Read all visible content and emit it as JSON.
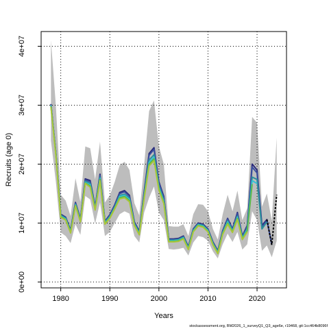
{
  "chart_data": {
    "type": "line",
    "xlabel": "Years",
    "ylabel": "Recruits (age 0)",
    "xlim": [
      1976,
      2026
    ],
    "ylim": [
      -1000000,
      42500000
    ],
    "x_ticks": [
      1980,
      1990,
      2000,
      2010,
      2020
    ],
    "x_tick_labels": [
      "1980",
      "1990",
      "2000",
      "2010",
      "2020"
    ],
    "y_ticks": [
      0,
      10000000,
      20000000,
      30000000,
      40000000
    ],
    "y_tick_labels": [
      "0e+00",
      "1e+07",
      "2e+07",
      "3e+07",
      "4e+07"
    ],
    "grid": true,
    "footer": "stockassessment.org, BM2026_1_surveyQ1_Q3_age6e, r19468, git:1cc464b8096f",
    "x": [
      1978,
      1979,
      1980,
      1981,
      1982,
      1983,
      1984,
      1985,
      1986,
      1987,
      1988,
      1989,
      1990,
      1991,
      1992,
      1993,
      1994,
      1995,
      1996,
      1997,
      1998,
      1999,
      2000,
      2001,
      2002,
      2003,
      2004,
      2005,
      2006,
      2007,
      2008,
      2009,
      2010,
      2011,
      2012,
      2013,
      2014,
      2015,
      2016,
      2017,
      2018,
      2019,
      2020,
      2021,
      2022,
      2023,
      2024
    ],
    "confidence_band": {
      "upper": [
        41000000,
        30000000,
        14800000,
        13800000,
        11200000,
        17600000,
        13600000,
        23000000,
        22700000,
        17400000,
        23800000,
        13500000,
        14700000,
        17000000,
        19800000,
        20400000,
        19000000,
        13400000,
        11300000,
        20000000,
        29000000,
        30800000,
        23000000,
        20000000,
        9500000,
        9400000,
        9400000,
        9800000,
        7800000,
        11500000,
        13200000,
        13100000,
        12000000,
        9000000,
        7200000,
        11500000,
        14800000,
        12000000,
        15500000,
        10500000,
        12500000,
        28000000,
        27000000,
        12800000,
        15000000,
        10400000,
        24500000
      ],
      "lower": [
        24000000,
        17000000,
        8400000,
        7800000,
        6600000,
        9800000,
        8000000,
        14600000,
        14000000,
        9900000,
        13500000,
        7800000,
        8500000,
        10000000,
        11500000,
        12000000,
        11600000,
        7800000,
        6700000,
        11800000,
        14300000,
        16200000,
        11800000,
        10500000,
        5600000,
        5500000,
        5600000,
        5800000,
        4500000,
        6700000,
        7800000,
        7600000,
        7000000,
        5200000,
        4000000,
        6400000,
        8200000,
        6800000,
        8500000,
        5500000,
        6400000,
        12000000,
        10500000,
        5300000,
        6200000,
        4200000,
        7000000
      ]
    },
    "series": [
      {
        "color": "#2a2a7a",
        "values": [
          30200000,
          22000000,
          11500000,
          11000000,
          8800000,
          13500000,
          10700000,
          17500000,
          17200000,
          12800000,
          18300000,
          10300000,
          11400000,
          13100000,
          15200000,
          15500000,
          14700000,
          10200000,
          8600000,
          15400000,
          21800000,
          22800000,
          17000000,
          14500000,
          7300000,
          7300000,
          7400000,
          7800000,
          6000000,
          9000000,
          10000000,
          9800000,
          9000000,
          6800000,
          5300000,
          8700000,
          10800000,
          9000000,
          11800000,
          7800000,
          9600000,
          20000000,
          19000000,
          9600000,
          10600000,
          6300000,
          null
        ]
      },
      {
        "color": "#3a4fa0",
        "values": [
          30100000,
          21900000,
          11400000,
          10900000,
          8700000,
          13400000,
          10600000,
          17300000,
          17000000,
          12700000,
          18100000,
          10200000,
          11300000,
          13000000,
          15000000,
          15300000,
          14500000,
          10100000,
          8500000,
          15200000,
          21500000,
          22500000,
          16800000,
          14300000,
          7200000,
          7200000,
          7300000,
          7700000,
          5900000,
          8900000,
          9900000,
          9700000,
          8900000,
          6700000,
          5200000,
          8600000,
          10700000,
          8900000,
          11600000,
          7700000,
          9400000,
          19500000,
          18500000,
          9300000,
          10400000,
          6500000,
          null
        ]
      },
      {
        "color": "#2c8f9a",
        "values": [
          30000000,
          21800000,
          11300000,
          10800000,
          8600000,
          13200000,
          10500000,
          17100000,
          16700000,
          12500000,
          17800000,
          10100000,
          11100000,
          12700000,
          14700000,
          14900000,
          14200000,
          9900000,
          8300000,
          14800000,
          20700000,
          21600000,
          16300000,
          13900000,
          7100000,
          7100000,
          7200000,
          7600000,
          5800000,
          8800000,
          9800000,
          9600000,
          8800000,
          6600000,
          5100000,
          8400000,
          10400000,
          8700000,
          11200000,
          7500000,
          9100000,
          17800000,
          17400000,
          9000000,
          10200000,
          null,
          null
        ]
      },
      {
        "color": "#33c3d6",
        "values": [
          29900000,
          21700000,
          11200000,
          10700000,
          8500000,
          13100000,
          10400000,
          16900000,
          16500000,
          12400000,
          17600000,
          10000000,
          11000000,
          12600000,
          14500000,
          14700000,
          14000000,
          9800000,
          8200000,
          14600000,
          20300000,
          21200000,
          16000000,
          13700000,
          7000000,
          7000000,
          7100000,
          7500000,
          5700000,
          8700000,
          9700000,
          9500000,
          8700000,
          6500000,
          5000000,
          8300000,
          10200000,
          8600000,
          11000000,
          7400000,
          8900000,
          17200000,
          16700000,
          null,
          null,
          null,
          null
        ]
      },
      {
        "color": "#5db84a",
        "values": [
          29800000,
          21600000,
          11100000,
          10600000,
          8400000,
          13000000,
          10300000,
          16800000,
          16300000,
          12300000,
          17400000,
          9900000,
          10900000,
          12500000,
          14300000,
          14500000,
          13800000,
          9700000,
          8100000,
          14400000,
          20000000,
          20900000,
          15800000,
          13500000,
          6900000,
          6900000,
          7000000,
          7400000,
          5600000,
          8600000,
          9600000,
          9400000,
          8600000,
          6400000,
          4900000,
          8200000,
          10000000,
          8500000,
          10800000,
          7300000,
          8700000,
          16600000,
          null,
          null,
          null,
          null,
          null
        ]
      },
      {
        "color": "#a9c63a",
        "values": [
          29700000,
          21500000,
          11000000,
          10500000,
          8300000,
          12900000,
          10200000,
          16700000,
          16100000,
          12200000,
          17200000,
          9800000,
          10800000,
          12400000,
          14100000,
          14300000,
          13600000,
          9600000,
          8000000,
          14200000,
          19700000,
          20600000,
          15600000,
          13300000,
          6800000,
          6800000,
          6900000,
          7300000,
          5500000,
          8500000,
          9500000,
          9300000,
          8500000,
          6300000,
          4800000,
          8100000,
          9800000,
          8400000,
          10600000,
          7200000,
          8500000,
          null,
          null,
          null,
          null,
          null,
          null
        ]
      }
    ],
    "dashed_tail": {
      "color": "#000000",
      "x": [
        2022,
        2023,
        2024
      ],
      "values": [
        10600000,
        6300000,
        14800000
      ]
    }
  }
}
